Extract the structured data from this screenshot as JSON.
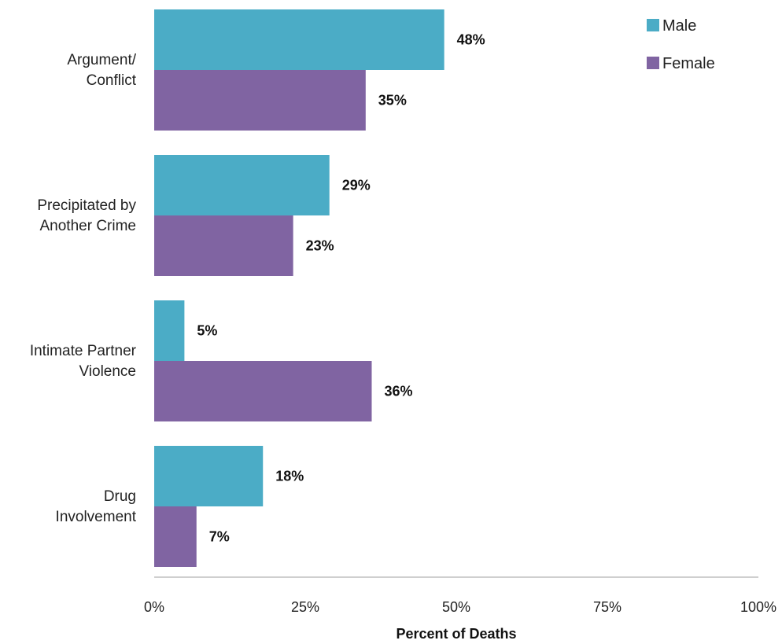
{
  "colors": {
    "male": "#4BACC6",
    "female": "#8064A2",
    "axis": "#BFBFBF"
  },
  "chart_data": {
    "type": "bar",
    "orientation": "horizontal",
    "title": "",
    "xlabel": "Percent of Deaths",
    "ylabel": "",
    "xlim": [
      0,
      100
    ],
    "x_ticks": [
      0,
      25,
      50,
      75,
      100
    ],
    "x_tick_labels": [
      "0%",
      "25%",
      "50%",
      "75%",
      "100%"
    ],
    "categories": [
      [
        "Argument/",
        "Conflict"
      ],
      [
        "Precipitated by",
        "Another Crime"
      ],
      [
        "Intimate Partner",
        "Violence"
      ],
      [
        "Drug",
        "Involvement"
      ]
    ],
    "series": [
      {
        "name": "Male",
        "color": "#4BACC6",
        "values": [
          48,
          29,
          5,
          18
        ],
        "labels": [
          "48%",
          "29%",
          "5%",
          "18%"
        ]
      },
      {
        "name": "Female",
        "color": "#8064A2",
        "values": [
          35,
          23,
          36,
          7
        ],
        "labels": [
          "35%",
          "23%",
          "36%",
          "7%"
        ]
      }
    ],
    "legend_position": "top-right",
    "grid": false
  }
}
